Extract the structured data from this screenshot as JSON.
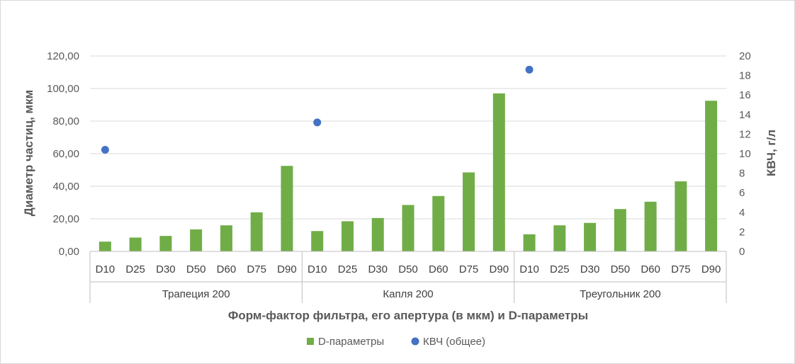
{
  "chart_data": {
    "type": "bar",
    "title": "",
    "xlabel": "Форм-фактор  фильтра, его апертура (в мкм) и D-параметры",
    "ylabel": "Диаметр частиц, мкм",
    "y2label": "КВЧ, г/л",
    "ylim": [
      0,
      120
    ],
    "y2lim": [
      0,
      20
    ],
    "yticks": [
      "0,00",
      "20,00",
      "40,00",
      "60,00",
      "80,00",
      "100,00",
      "120,00"
    ],
    "y2ticks": [
      "0",
      "2",
      "4",
      "6",
      "8",
      "10",
      "12",
      "14",
      "16",
      "18",
      "20"
    ],
    "groups": [
      {
        "name": "Трапеция 200",
        "categories": [
          "D10",
          "D25",
          "D30",
          "D50",
          "D60",
          "D75",
          "D90"
        ],
        "d_values": [
          6.0,
          8.5,
          9.5,
          13.5,
          16.0,
          24.0,
          52.5
        ],
        "kvch": 10.4
      },
      {
        "name": "Капля 200",
        "categories": [
          "D10",
          "D25",
          "D30",
          "D50",
          "D60",
          "D75",
          "D90"
        ],
        "d_values": [
          12.5,
          18.5,
          20.5,
          28.5,
          34.0,
          48.5,
          97.0
        ],
        "kvch": 13.2
      },
      {
        "name": "Треугольник 200",
        "categories": [
          "D10",
          "D25",
          "D30",
          "D50",
          "D60",
          "D75",
          "D90"
        ],
        "d_values": [
          10.5,
          16.0,
          17.5,
          26.0,
          30.5,
          43.0,
          92.5
        ],
        "kvch": 18.6
      }
    ],
    "series": [
      {
        "name": "D-параметры",
        "kind": "bar",
        "axis": "left",
        "color": "#70ad47"
      },
      {
        "name": "КВЧ (общее)",
        "kind": "scatter",
        "axis": "right",
        "color": "#4472c4"
      }
    ],
    "grid": true,
    "legend_position": "bottom"
  }
}
